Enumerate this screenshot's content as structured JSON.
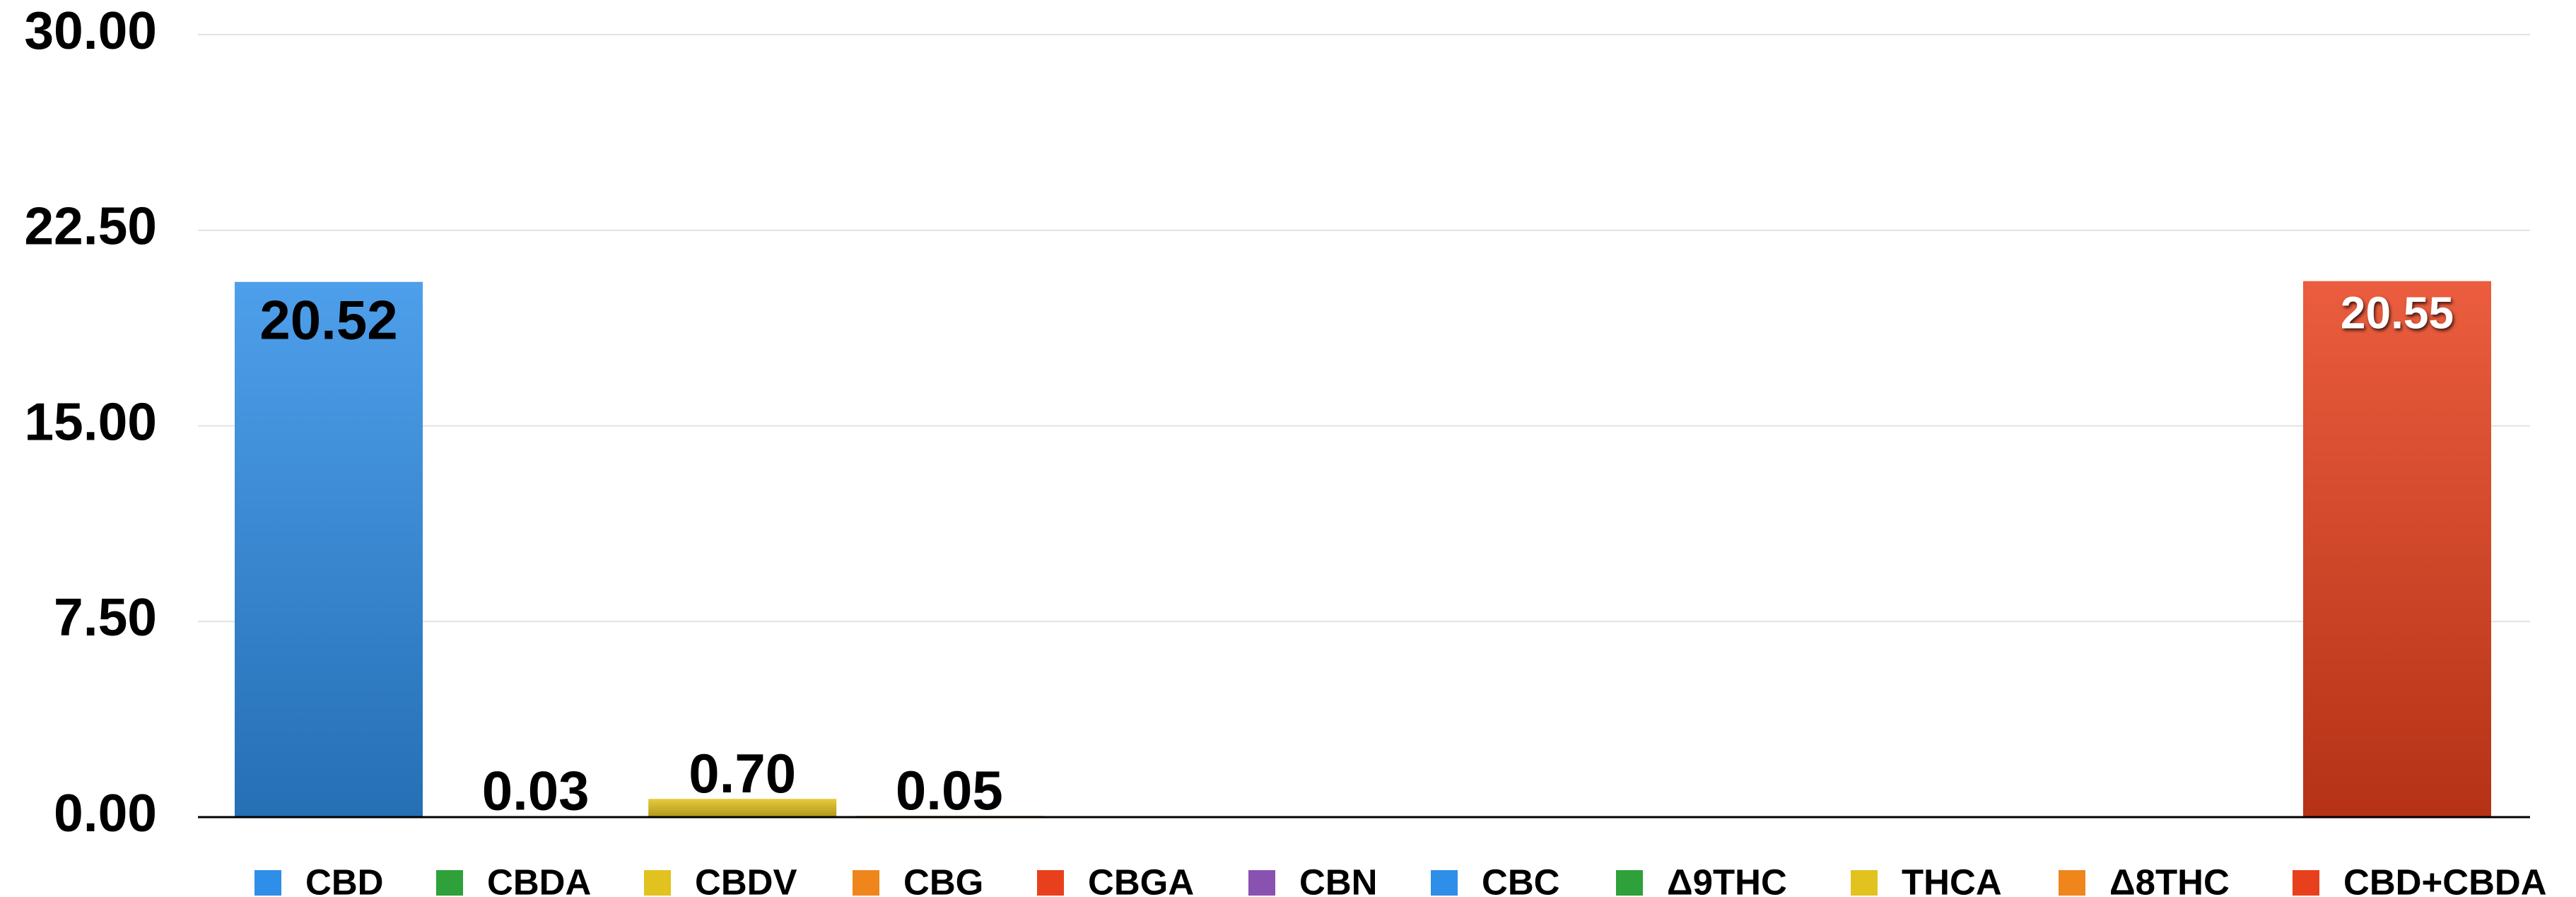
{
  "chart_data": {
    "type": "bar",
    "categories": [
      "CBD",
      "CBDA",
      "CBDV",
      "CBG",
      "CBGA",
      "CBN",
      "CBC",
      "Δ9THC",
      "THCA",
      "Δ8THC",
      "CBD+CBDA"
    ],
    "values": [
      20.52,
      0.03,
      0.7,
      0.05,
      null,
      null,
      null,
      null,
      null,
      null,
      20.55
    ],
    "value_labels": [
      "20.52",
      "0.03",
      "0.70",
      "0.05",
      null,
      null,
      null,
      null,
      null,
      null,
      "20.55"
    ],
    "colors": [
      "#2f8ee8",
      "#2ea13a",
      "#e2c21e",
      "#ee861c",
      "#e8401c",
      "#8a52b0",
      "#2f8ee8",
      "#2ea13a",
      "#e2c21e",
      "#ee861c",
      "#e8401c"
    ],
    "value_label_colors": [
      "#000000",
      "#000000",
      "#000000",
      "#000000",
      null,
      null,
      null,
      null,
      null,
      null,
      "#ffffff"
    ],
    "ylim": [
      0,
      30
    ],
    "yticks": [
      {
        "value": 0,
        "label": "0.00"
      },
      {
        "value": 7.5,
        "label": "7.50"
      },
      {
        "value": 15,
        "label": "15.00"
      },
      {
        "value": 22.5,
        "label": "22.50"
      },
      {
        "value": 30,
        "label": "30.00"
      }
    ],
    "grid": true,
    "legend": "bottom"
  }
}
